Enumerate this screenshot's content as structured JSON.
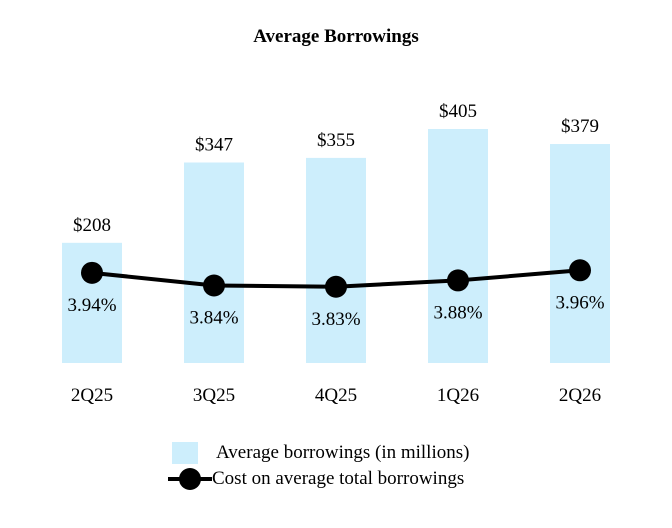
{
  "chart_data": {
    "type": "bar",
    "title": "Average Borrowings",
    "categories": [
      "2Q25",
      "3Q25",
      "4Q25",
      "1Q26",
      "2Q26"
    ],
    "series": [
      {
        "name": "Average borrowings (in millions)",
        "type": "bar",
        "values": [
          208,
          347,
          355,
          405,
          379
        ],
        "labels": [
          "$208",
          "$347",
          "$355",
          "$405",
          "$379"
        ],
        "color": "#cdeefc"
      },
      {
        "name": "Cost on average total borrowings",
        "type": "line",
        "values": [
          3.94,
          3.84,
          3.83,
          3.88,
          3.96
        ],
        "labels": [
          "3.94%",
          "3.84%",
          "3.83%",
          "3.88%",
          "3.96%"
        ],
        "color": "#000000"
      }
    ],
    "legend_position": "bottom",
    "grid": false
  }
}
